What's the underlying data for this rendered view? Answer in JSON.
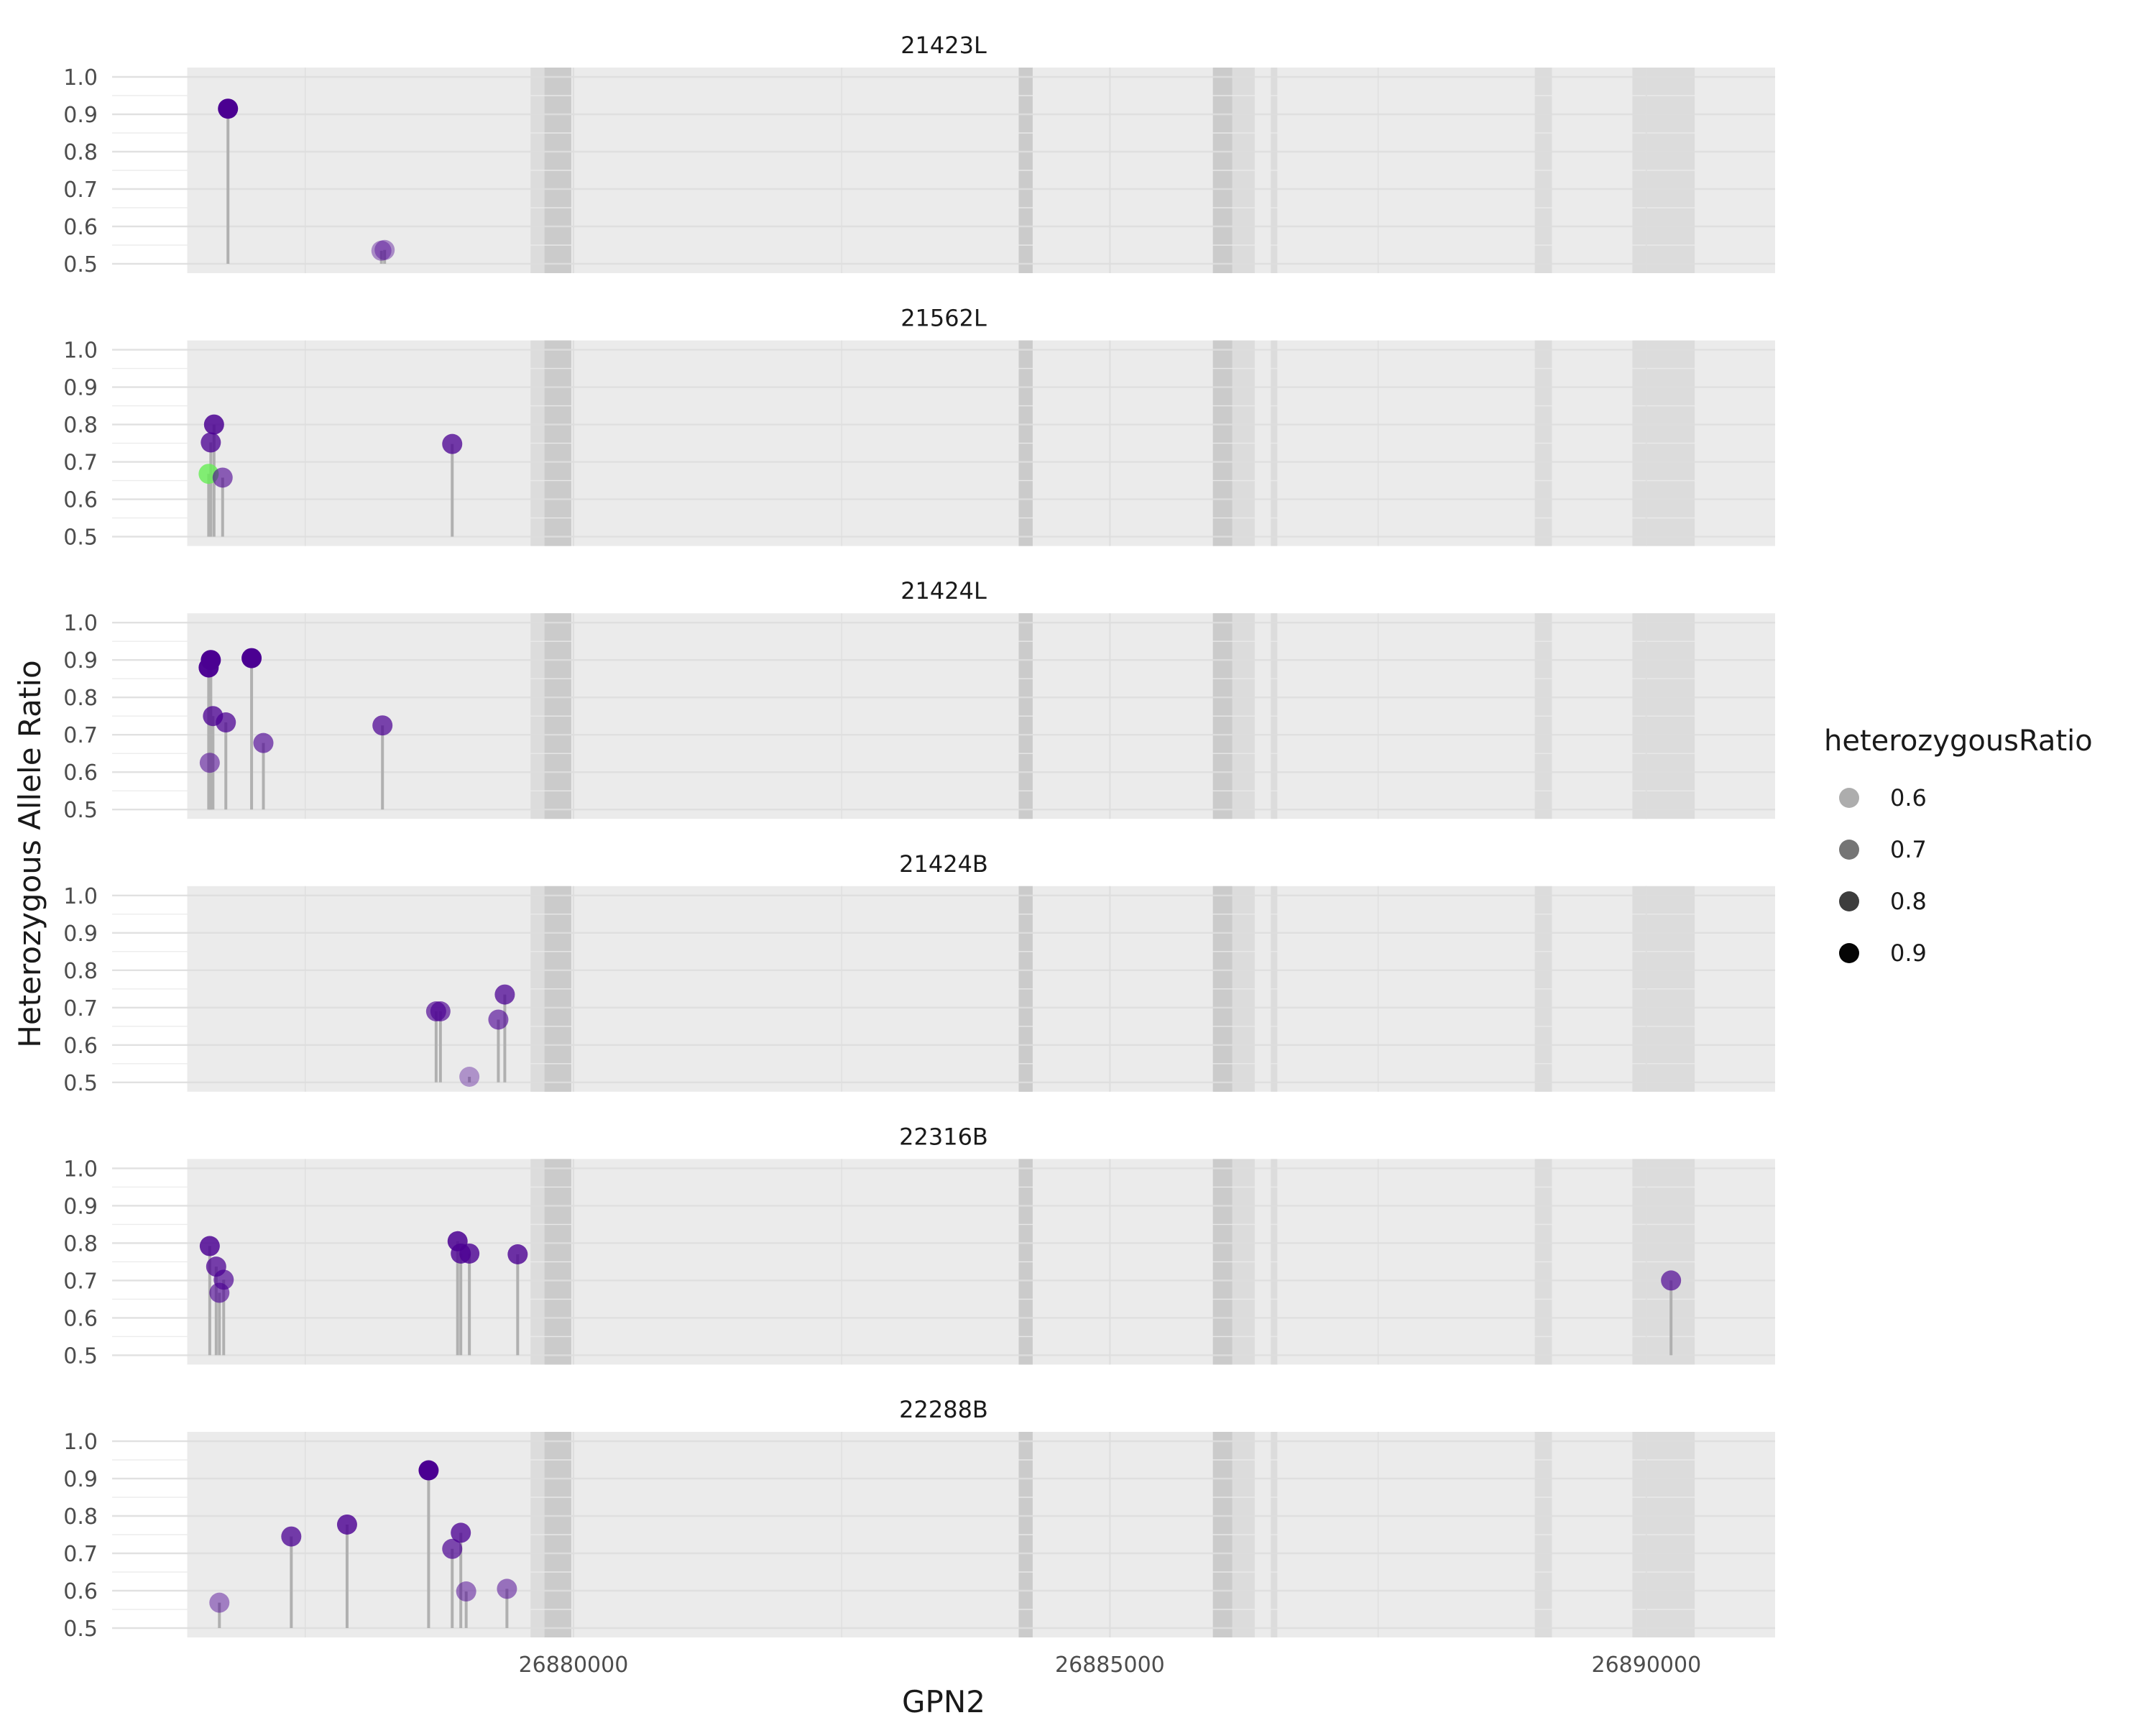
{
  "chart_data": {
    "type": "scatter",
    "xlabel": "GPN2",
    "ylabel": "Heterozygous Allele Ratio",
    "x_ticks": [
      26880000,
      26885000,
      26890000
    ],
    "x_tick_labels": [
      "26880000",
      "26885000",
      "26890000"
    ],
    "xlim": [
      26875700,
      26891200
    ],
    "y_ticks": [
      0.5,
      0.6,
      0.7,
      0.8,
      0.9,
      1.0
    ],
    "y_tick_labels": [
      "0.5",
      "0.6",
      "0.7",
      "0.8",
      "0.9",
      "1.0"
    ],
    "ylim": [
      0.475,
      1.025
    ],
    "grid": true,
    "background_regions": [
      [
        26876400,
        26891200
      ]
    ],
    "exon_regions": [
      [
        26879600,
        26879980
      ],
      [
        26884150,
        26884280
      ],
      [
        26885960,
        26886140
      ],
      [
        26886140,
        26886350
      ],
      [
        26886500,
        26886560
      ],
      [
        26888960,
        26889120
      ],
      [
        26889870,
        26890450
      ]
    ],
    "dark_regions": [
      [
        26879730,
        26879980
      ],
      [
        26884150,
        26884280
      ],
      [
        26885960,
        26886140
      ]
    ],
    "baseline": 0.5,
    "legend": {
      "title": "heterozygousRatio",
      "placement": "right",
      "entries": [
        "0.6",
        "0.7",
        "0.8",
        "0.9"
      ],
      "values": [
        0.6,
        0.7,
        0.8,
        0.9
      ]
    },
    "colors": {
      "point": "#4b0092",
      "highlight": "#66ee55",
      "stem": "#b0b0b0",
      "panel_bg": "#ebebeb",
      "exon": "#dcdcdc",
      "exon_dark": "#c8c8c8",
      "grid": "#f5f5f5"
    },
    "panels": [
      {
        "title": "21423L",
        "points": [
          {
            "x": 26876780,
            "y": 0.915
          },
          {
            "x": 26878210,
            "y": 0.535
          },
          {
            "x": 26878240,
            "y": 0.537
          }
        ]
      },
      {
        "title": "21562L",
        "points": [
          {
            "x": 26876600,
            "y": 0.668,
            "highlight": true
          },
          {
            "x": 26876620,
            "y": 0.752
          },
          {
            "x": 26876650,
            "y": 0.8
          },
          {
            "x": 26876730,
            "y": 0.658
          },
          {
            "x": 26878870,
            "y": 0.748
          }
        ]
      },
      {
        "title": "21424L",
        "points": [
          {
            "x": 26876600,
            "y": 0.88
          },
          {
            "x": 26876610,
            "y": 0.625
          },
          {
            "x": 26876620,
            "y": 0.9
          },
          {
            "x": 26876640,
            "y": 0.75
          },
          {
            "x": 26876760,
            "y": 0.733
          },
          {
            "x": 26877000,
            "y": 0.905
          },
          {
            "x": 26877110,
            "y": 0.678
          },
          {
            "x": 26878220,
            "y": 0.725
          }
        ]
      },
      {
        "title": "21424B",
        "points": [
          {
            "x": 26878720,
            "y": 0.69
          },
          {
            "x": 26878760,
            "y": 0.69
          },
          {
            "x": 26879030,
            "y": 0.515
          },
          {
            "x": 26879300,
            "y": 0.668
          },
          {
            "x": 26879360,
            "y": 0.735
          }
        ]
      },
      {
        "title": "22316B",
        "points": [
          {
            "x": 26876610,
            "y": 0.792
          },
          {
            "x": 26876670,
            "y": 0.737
          },
          {
            "x": 26876700,
            "y": 0.667
          },
          {
            "x": 26876740,
            "y": 0.702
          },
          {
            "x": 26878920,
            "y": 0.805
          },
          {
            "x": 26878950,
            "y": 0.772
          },
          {
            "x": 26879030,
            "y": 0.772
          },
          {
            "x": 26879480,
            "y": 0.77
          },
          {
            "x": 26890230,
            "y": 0.7
          }
        ]
      },
      {
        "title": "22288B",
        "points": [
          {
            "x": 26876700,
            "y": 0.568
          },
          {
            "x": 26877370,
            "y": 0.745
          },
          {
            "x": 26877890,
            "y": 0.777
          },
          {
            "x": 26878650,
            "y": 0.922
          },
          {
            "x": 26878870,
            "y": 0.712
          },
          {
            "x": 26878950,
            "y": 0.755
          },
          {
            "x": 26879000,
            "y": 0.598
          },
          {
            "x": 26879380,
            "y": 0.605
          }
        ]
      }
    ]
  }
}
